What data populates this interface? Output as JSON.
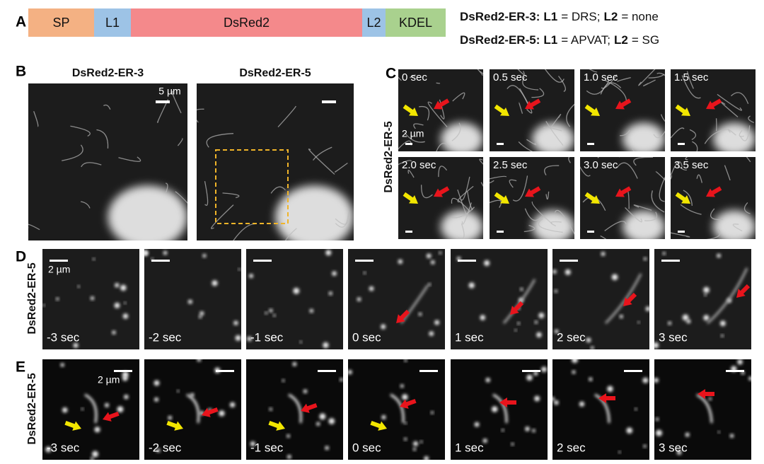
{
  "panels": {
    "A": {
      "label": "A",
      "segments": [
        "SP",
        "L1",
        "DsRed2",
        "L2",
        "KDEL"
      ],
      "legend": [
        {
          "name": "DsRed2-ER-3:",
          "l1_key": "L1",
          "l1": "= DRS;",
          "l2_key": "L2",
          "l2": "= none"
        },
        {
          "name": "DsRed2-ER-5:",
          "l1_key": "L1",
          "l1": "= APVAT;",
          "l2_key": "L2",
          "l2": "= SG"
        }
      ]
    },
    "B": {
      "label": "B",
      "titles": [
        "DsRed2-ER-3",
        "DsRed2-ER-5"
      ],
      "scale": "5 µm"
    },
    "C": {
      "label": "C",
      "ylabel": "DsRed2-ER-5",
      "scale": "2 µm",
      "times": [
        "0 sec",
        "0.5 sec",
        "1.0 sec",
        "1.5 sec",
        "2.0 sec",
        "2.5 sec",
        "3.0 sec",
        "3.5 sec"
      ]
    },
    "D": {
      "label": "D",
      "ylabel": "DsRed2-ER-5",
      "scale": "2 µm",
      "times": [
        "-3 sec",
        "-2 sec",
        "-1 sec",
        "0 sec",
        "1 sec",
        "2 sec",
        "3 sec"
      ]
    },
    "E": {
      "label": "E",
      "ylabel": "DsRed2-ER-5",
      "scale": "2 µm",
      "times": [
        "-3 sec",
        "-2 sec",
        "-1 sec",
        "0 sec",
        "1 sec",
        "2 sec",
        "3 sec"
      ]
    }
  }
}
